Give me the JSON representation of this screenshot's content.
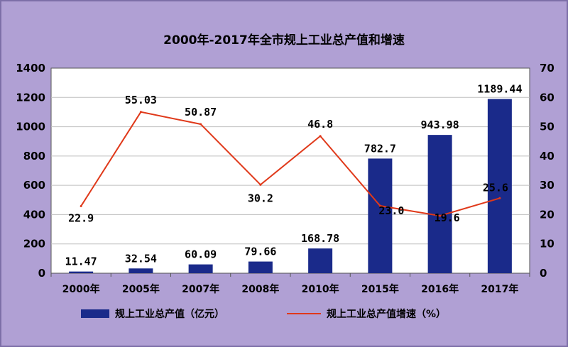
{
  "chart_data": {
    "type": "bar+line",
    "title": "2000年-2017年全市规上工业总产值和增速",
    "categories": [
      "2000年",
      "2005年",
      "2007年",
      "2008年",
      "2010年",
      "2015年",
      "2016年",
      "2017年"
    ],
    "series": [
      {
        "name": "规上工业总产值（亿元）",
        "type": "bar",
        "axis": "left",
        "color": "#1a2a8a",
        "values": [
          11.47,
          32.54,
          60.09,
          79.66,
          168.78,
          782.7,
          943.98,
          1189.44
        ],
        "labels": [
          "11.47",
          "32.54",
          "60.09",
          "79.66",
          "168.78",
          "782.7",
          "943.98",
          "1189.44"
        ]
      },
      {
        "name": "规上工业总产值增速（%）",
        "type": "line",
        "axis": "right",
        "color": "#e0391a",
        "values": [
          22.9,
          55.03,
          50.87,
          30.2,
          46.8,
          23.0,
          19.6,
          25.6
        ],
        "labels": [
          "22.9",
          "55.03",
          "50.87",
          "30.2",
          "46.8",
          "23.0",
          "19.6",
          "25.6"
        ]
      }
    ],
    "y_left": {
      "ylim": [
        0,
        1400
      ],
      "ticks": [
        "0",
        "200",
        "400",
        "600",
        "800",
        "1000",
        "1200",
        "1400"
      ]
    },
    "y_right": {
      "ylim": [
        0,
        70
      ],
      "ticks": [
        "0",
        "10",
        "20",
        "30",
        "40",
        "50",
        "60",
        "70"
      ]
    },
    "grid": true,
    "legend": "bottom"
  }
}
